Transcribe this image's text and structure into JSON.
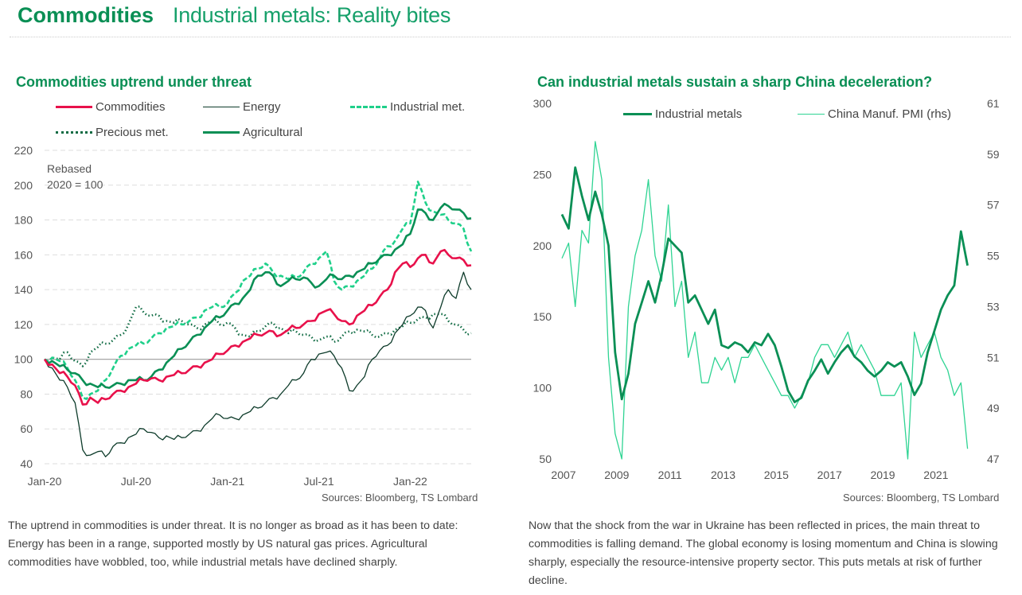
{
  "header": {
    "section": "Commodities",
    "title": "Industrial metals: Reality bites"
  },
  "colors": {
    "commodities": "#e8114b",
    "energy": "#0d3b2a",
    "industrial": "#1fd08a",
    "precious": "#0f6b43",
    "agricultural": "#0a8f55",
    "pmi": "#2fd493",
    "title": "#0a8f55"
  },
  "left": {
    "paragraph": "The uptrend in commodities is under threat. It is no longer as broad as it has been to date: Energy has been in a range, supported mostly by US natural gas prices. Agricultural commodities have wobbled, too, while industrial metals have declined sharply.",
    "source": "Sources: Bloomberg, TS Lombard"
  },
  "right": {
    "paragraph": "Now that the shock from the war in Ukraine has been reflected in prices, the main threat to commodities  is falling demand. The global economy is losing momentum and China is slowing sharply, especially the resource-intensive property sector. This puts metals at risk of further decline.",
    "source": "Sources: Bloomberg, TS Lombard"
  },
  "chart_data": [
    {
      "type": "line",
      "title": "Commodities uptrend under threat",
      "annotation": [
        "Rebased",
        "2020 = 100"
      ],
      "xlabel": "",
      "ylabel": "",
      "ylim": [
        40,
        220
      ],
      "yticks": [
        "40",
        "60",
        "80",
        "100",
        "120",
        "140",
        "160",
        "180",
        "200",
        "220"
      ],
      "xticks": [
        "Jan-20",
        "Jul-20",
        "Jan-21",
        "Jul-21",
        "Jan-22"
      ],
      "x_unit": "months since Jan-20",
      "x_range": [
        0,
        28
      ],
      "xtick_positions": [
        0,
        6,
        12,
        18,
        24
      ],
      "reference_line": 100,
      "grid": true,
      "legend": "top",
      "x": [
        0,
        0.5,
        1,
        1.5,
        2,
        2.5,
        3,
        3.5,
        4,
        4.5,
        5,
        5.5,
        6,
        6.5,
        7,
        7.5,
        8,
        8.5,
        9,
        9.5,
        10,
        10.5,
        11,
        11.5,
        12,
        12.5,
        13,
        13.5,
        14,
        14.5,
        15,
        15.5,
        16,
        16.5,
        17,
        17.5,
        18,
        18.5,
        19,
        19.5,
        20,
        20.5,
        21,
        21.5,
        22,
        22.5,
        23,
        23.5,
        24,
        24.5,
        25,
        25.5,
        26,
        26.5,
        27,
        27.5,
        28
      ],
      "series": [
        {
          "name": "Commodities",
          "style": "solid-thick",
          "values": [
            100,
            97,
            92,
            90,
            85,
            74,
            78,
            75,
            77,
            80,
            82,
            84,
            86,
            88,
            89,
            88,
            90,
            91,
            92,
            94,
            96,
            98,
            100,
            103,
            105,
            108,
            110,
            112,
            114,
            115,
            116,
            114,
            117,
            118,
            120,
            122,
            126,
            128,
            126,
            122,
            120,
            125,
            128,
            131,
            136,
            140,
            150,
            155,
            153,
            158,
            160,
            155,
            162,
            160,
            158,
            157,
            154
          ]
        },
        {
          "name": "Energy",
          "style": "solid-thin",
          "values": [
            100,
            95,
            88,
            84,
            75,
            48,
            45,
            47,
            44,
            50,
            52,
            55,
            57,
            60,
            58,
            55,
            56,
            54,
            55,
            57,
            59,
            62,
            66,
            68,
            66,
            66,
            68,
            70,
            72,
            75,
            78,
            80,
            85,
            88,
            92,
            100,
            103,
            104,
            102,
            95,
            82,
            85,
            90,
            100,
            105,
            108,
            115,
            120,
            125,
            130,
            128,
            118,
            130,
            140,
            135,
            150,
            140
          ]
        },
        {
          "name": "Industrial met.",
          "style": "dashed",
          "values": [
            100,
            101,
            99,
            95,
            88,
            78,
            80,
            82,
            88,
            95,
            102,
            106,
            108,
            109,
            112,
            115,
            118,
            119,
            120,
            122,
            124,
            128,
            130,
            130,
            132,
            138,
            145,
            148,
            152,
            155,
            150,
            148,
            146,
            147,
            150,
            155,
            158,
            162,
            145,
            140,
            142,
            145,
            148,
            152,
            158,
            165,
            168,
            175,
            178,
            202,
            190,
            185,
            183,
            180,
            178,
            175,
            162
          ]
        },
        {
          "name": "Precious met.",
          "style": "dotted",
          "values": [
            100,
            101,
            100,
            104,
            99,
            96,
            104,
            107,
            109,
            111,
            114,
            120,
            130,
            127,
            125,
            125,
            122,
            121,
            122,
            120,
            118,
            120,
            122,
            120,
            121,
            118,
            114,
            113,
            116,
            119,
            121,
            118,
            115,
            116,
            114,
            113,
            111,
            113,
            110,
            113,
            116,
            117,
            116,
            114,
            113,
            115,
            117,
            119,
            121,
            123,
            124,
            126,
            126,
            122,
            120,
            117,
            115
          ]
        },
        {
          "name": "Agricultural",
          "style": "solid-thick",
          "values": [
            100,
            99,
            96,
            94,
            92,
            88,
            86,
            84,
            84,
            85,
            86,
            88,
            88,
            88,
            90,
            94,
            98,
            102,
            106,
            110,
            114,
            118,
            122,
            124,
            128,
            132,
            135,
            140,
            148,
            150,
            148,
            142,
            145,
            146,
            147,
            144,
            142,
            146,
            148,
            146,
            148,
            150,
            152,
            155,
            158,
            160,
            163,
            166,
            172,
            186,
            184,
            180,
            187,
            188,
            186,
            184,
            181
          ]
        }
      ]
    },
    {
      "type": "line",
      "title": "Can industrial metals sustain a sharp China deceleration?",
      "xlabel": "",
      "ylabel": "",
      "y2label": "China Manuf. PMI (rhs)",
      "ylim": [
        50,
        300
      ],
      "y2lim": [
        47,
        61
      ],
      "yticks": [
        "50",
        "100",
        "150",
        "200",
        "250",
        "300"
      ],
      "y2ticks": [
        "47",
        "49",
        "51",
        "53",
        "55",
        "57",
        "59",
        "61"
      ],
      "xticks": [
        "2007",
        "2009",
        "2011",
        "2013",
        "2015",
        "2017",
        "2019",
        "2021"
      ],
      "x_range": [
        2007,
        2022.5
      ],
      "grid": false,
      "legend": "top",
      "x": [
        2007,
        2007.25,
        2007.5,
        2007.75,
        2008,
        2008.25,
        2008.5,
        2008.75,
        2009,
        2009.25,
        2009.5,
        2009.75,
        2010,
        2010.25,
        2010.5,
        2010.75,
        2011,
        2011.25,
        2011.5,
        2011.75,
        2012,
        2012.25,
        2012.5,
        2012.75,
        2013,
        2013.25,
        2013.5,
        2013.75,
        2014,
        2014.25,
        2014.5,
        2014.75,
        2015,
        2015.25,
        2015.5,
        2015.75,
        2016,
        2016.25,
        2016.5,
        2016.75,
        2017,
        2017.25,
        2017.5,
        2017.75,
        2018,
        2018.25,
        2018.5,
        2018.75,
        2019,
        2019.25,
        2019.5,
        2019.75,
        2020,
        2020.25,
        2020.5,
        2020.75,
        2021,
        2021.25,
        2021.5,
        2021.75,
        2022,
        2022.25
      ],
      "series": [
        {
          "name": "Industrial metals",
          "axis": "left",
          "style": "solid-thick",
          "values": [
            222,
            212,
            255,
            235,
            218,
            238,
            222,
            200,
            125,
            92,
            110,
            145,
            160,
            175,
            160,
            180,
            205,
            200,
            195,
            160,
            165,
            155,
            145,
            155,
            130,
            128,
            132,
            130,
            125,
            132,
            130,
            138,
            130,
            115,
            98,
            90,
            93,
            105,
            112,
            120,
            110,
            118,
            125,
            130,
            122,
            118,
            112,
            108,
            112,
            118,
            115,
            118,
            108,
            95,
            103,
            125,
            140,
            155,
            165,
            172,
            210,
            186
          ]
        },
        {
          "name": "China Manuf. PMI (rhs)",
          "axis": "right",
          "style": "solid-thin",
          "values": [
            54.9,
            55.5,
            53,
            56,
            55.5,
            59.5,
            58,
            51,
            48,
            47,
            53,
            55,
            56,
            58,
            55,
            54,
            57,
            53,
            54,
            51,
            52,
            50,
            50,
            51,
            50.5,
            51,
            50,
            51,
            51,
            51.5,
            51,
            50.5,
            50,
            49.5,
            49.5,
            49,
            49.5,
            50,
            51,
            51.5,
            51.5,
            51,
            51.5,
            52,
            51,
            51.5,
            51,
            50.5,
            49.5,
            49.5,
            49.5,
            50,
            47,
            52,
            51,
            51.5,
            52,
            51,
            50.5,
            49.5,
            50,
            47.4
          ]
        }
      ]
    }
  ]
}
